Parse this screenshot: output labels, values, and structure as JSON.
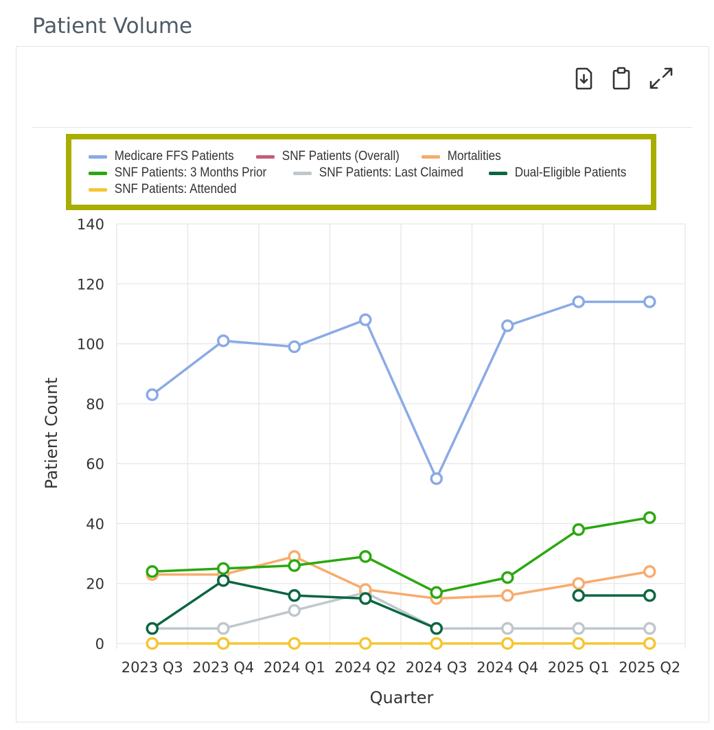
{
  "page": {
    "title": "Patient Volume"
  },
  "toolbar": {
    "download_icon": "download-icon",
    "clipboard_icon": "clipboard-icon",
    "expand_icon": "expand-icon"
  },
  "chart_data": {
    "type": "line",
    "title": "",
    "xlabel": "Quarter",
    "ylabel": "Patient Count",
    "ylim": [
      0,
      140
    ],
    "yticks": [
      0,
      20,
      40,
      60,
      80,
      100,
      120,
      140
    ],
    "grid": true,
    "legend_position": "top",
    "categories": [
      "2023 Q3",
      "2023 Q4",
      "2024 Q1",
      "2024 Q2",
      "2024 Q3",
      "2024 Q4",
      "2025 Q1",
      "2025 Q2"
    ],
    "series": [
      {
        "name": "Medicare FFS Patients",
        "color": "#8aaae5",
        "values": [
          83,
          101,
          99,
          108,
          55,
          106,
          114,
          114
        ]
      },
      {
        "name": "SNF Patients (Overall)",
        "color": "#c75b7a",
        "values": [
          null,
          null,
          null,
          null,
          null,
          null,
          null,
          null
        ]
      },
      {
        "name": "Mortalities",
        "color": "#f7ac6c",
        "values": [
          23,
          23,
          29,
          18,
          15,
          16,
          20,
          24
        ]
      },
      {
        "name": "SNF Patients: 3 Months Prior",
        "color": "#2aa80f",
        "values": [
          24,
          25,
          26,
          29,
          17,
          22,
          38,
          42
        ]
      },
      {
        "name": "SNF Patients: Last Claimed",
        "color": "#bfc7cc",
        "values": [
          5,
          5,
          11,
          17,
          5,
          5,
          5,
          5
        ]
      },
      {
        "name": "Dual-Eligible Patients",
        "color": "#0a6640",
        "values": [
          5,
          21,
          16,
          15,
          5,
          null,
          16,
          16
        ]
      },
      {
        "name": "SNF Patients: Attended",
        "color": "#f5c533",
        "values": [
          0,
          0,
          0,
          0,
          0,
          0,
          0,
          0
        ]
      }
    ]
  }
}
